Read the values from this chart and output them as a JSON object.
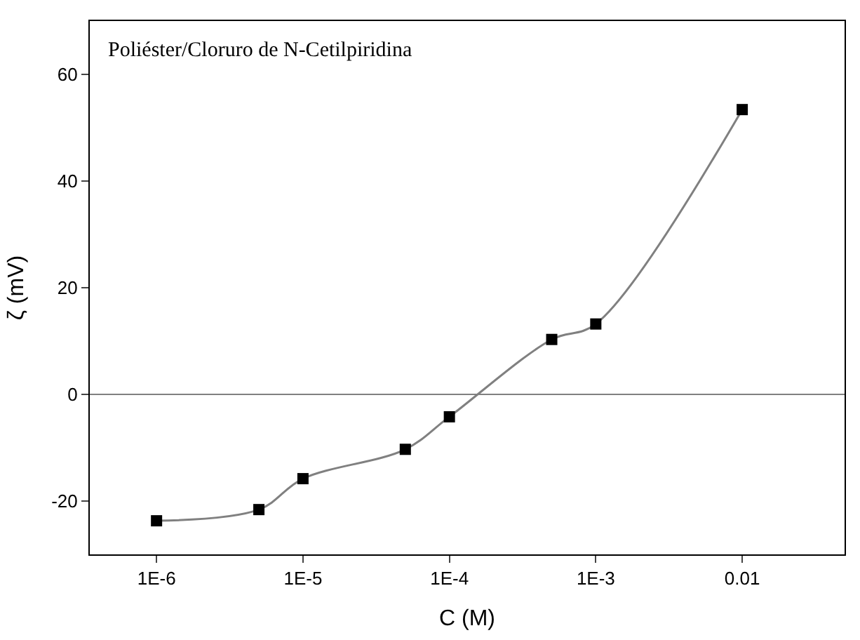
{
  "chart_data": {
    "type": "scatter",
    "xlabel": "C (M)",
    "ylabel": "ζ (mV)",
    "annotations": [
      "Poliéster/Cloruro de N-Cetilpiridina"
    ],
    "x": [
      1e-06,
      5e-06,
      1e-05,
      5e-05,
      0.0001,
      0.0005,
      0.001,
      0.01
    ],
    "series": [
      {
        "type": "line",
        "color": "#808080",
        "values": [
          -23.7,
          -21.6,
          -15.8,
          -10.3,
          -4.2,
          10.3,
          13.2,
          53.4
        ]
      },
      {
        "color": "#000000",
        "marker": "square",
        "values": [
          -23.7,
          -21.6,
          -15.8,
          -10.3,
          -4.2,
          10.3,
          13.2,
          53.4
        ]
      }
    ],
    "log": "x",
    "xlim": [
      3.5e-07,
      0.05
    ],
    "xticks": [
      {
        "value": 1e-06,
        "label": "1E-6"
      },
      {
        "value": 1e-05,
        "label": "1E-5"
      },
      {
        "value": 0.0001,
        "label": "1E-4"
      },
      {
        "value": 0.001,
        "label": "1E-3"
      },
      0.01
    ],
    "ylim": [
      -30,
      70
    ],
    "yticks": [
      -20,
      0,
      20,
      40,
      60
    ],
    "ref_lines": [
      {
        "axis": "y",
        "value": 0,
        "color": "#808080"
      }
    ]
  }
}
